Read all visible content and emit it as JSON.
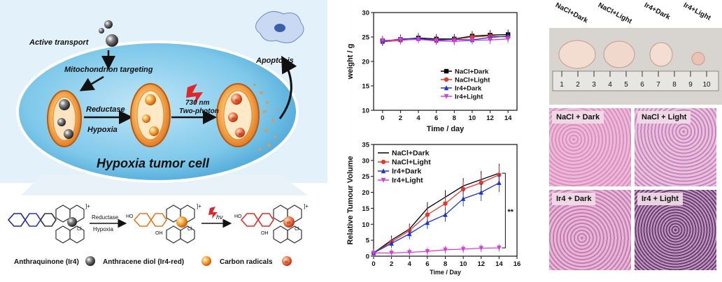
{
  "schematic": {
    "active_transport": "Active transport",
    "mito_targeting": "Mitochondrion targeting",
    "reductase": "Reductase",
    "hypoxia": "Hypoxia",
    "wavelength": "730 nm",
    "two_photon": "Two-photon",
    "apoptosis": "Apoptosis",
    "cell_title": "Hypoxia tumor cell",
    "scheme_reductase": "Reductase",
    "scheme_hypoxia": "Hypoxia",
    "hv": "hν",
    "legend": [
      "Anthraquinone (Ir4)",
      "Anthracene diol (Ir4-red)",
      "Carbon radicals"
    ],
    "colors": {
      "cell": "#7ec8ea",
      "backdrop": "#cfe8f6",
      "orange": "#f08a24",
      "red": "#d9302c"
    }
  },
  "chart_data": [
    {
      "type": "line",
      "xlabel": "Time / day",
      "ylabel": "weight / g",
      "x": [
        0,
        2,
        4,
        6,
        8,
        10,
        12,
        14
      ],
      "xlim": [
        -1,
        15
      ],
      "ylim": [
        10,
        30
      ],
      "xticks": [
        "0",
        "2",
        "4",
        "6",
        "8",
        "10",
        "12",
        "14"
      ],
      "yticks": [
        "10",
        "15",
        "20",
        "25",
        "30"
      ],
      "legend": "right",
      "series": [
        {
          "name": "NaCl+Dark",
          "color": "#000000",
          "marker": "square",
          "values": [
            24.2,
            24.5,
            24.8,
            24.6,
            24.6,
            25.2,
            25.4,
            25.5
          ]
        },
        {
          "name": "NaCl+Light",
          "color": "#e03a2f",
          "marker": "circle",
          "values": [
            24.0,
            24.3,
            24.6,
            24.4,
            24.5,
            25.0,
            25.2,
            25.0
          ]
        },
        {
          "name": "Ir4+Dark",
          "color": "#1f35c9",
          "marker": "triangle",
          "values": [
            24.1,
            24.6,
            24.7,
            24.3,
            24.5,
            24.4,
            24.9,
            25.2
          ]
        },
        {
          "name": "Ir4+Light",
          "color": "#d23fd6",
          "marker": "tri-down",
          "values": [
            24.3,
            24.4,
            24.5,
            24.2,
            24.1,
            24.3,
            24.4,
            24.6
          ]
        }
      ]
    },
    {
      "type": "line",
      "xlabel": "Time / Day",
      "ylabel": "Relative Tumour Volume",
      "x": [
        0,
        2,
        4,
        6,
        8,
        10,
        12,
        14
      ],
      "xlim": [
        0,
        16
      ],
      "ylim": [
        0,
        35
      ],
      "xticks": [
        "0",
        "2",
        "4",
        "6",
        "8",
        "10",
        "12",
        "14",
        "16"
      ],
      "yticks": [
        "0",
        "5",
        "10",
        "15",
        "20",
        "25",
        "30",
        "35"
      ],
      "legend": "top-left",
      "annotation": "**",
      "series": [
        {
          "name": "NaCl+Dark",
          "color": "#000000",
          "marker": "line",
          "values": [
            1,
            5,
            8.5,
            15,
            18.5,
            22,
            24,
            26
          ]
        },
        {
          "name": "NaCl+Light",
          "color": "#e03a2f",
          "marker": "circle",
          "values": [
            1,
            4.5,
            8,
            13,
            16.5,
            21,
            23,
            25.5
          ]
        },
        {
          "name": "Ir4+Dark",
          "color": "#1f35c9",
          "marker": "triangle",
          "values": [
            1,
            4,
            7,
            10.5,
            13,
            18,
            20,
            23
          ]
        },
        {
          "name": "Ir4+Light",
          "color": "#d23fd6",
          "marker": "tri-down",
          "values": [
            1,
            1,
            1.2,
            1.5,
            2,
            2.2,
            2.5,
            2.6
          ]
        }
      ]
    }
  ],
  "tumors": {
    "labels": [
      "NaCl+Dark",
      "NaCl+Light",
      "Ir4+Dark",
      "Ir4+Light"
    ],
    "ruler_numbers": [
      "1",
      "2",
      "3",
      "4",
      "5",
      "6",
      "7",
      "8",
      "9",
      "10"
    ]
  },
  "histology": {
    "labels": [
      "NaCl + Dark",
      "NaCl + Light",
      "Ir4 + Dark",
      "Ir4 + Light"
    ]
  }
}
